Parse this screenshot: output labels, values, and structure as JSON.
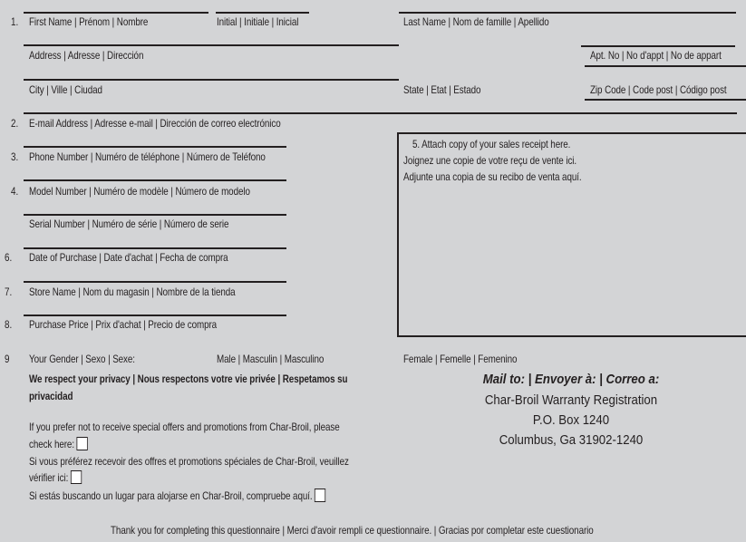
{
  "form": {
    "numbers": [
      "1.",
      "2.",
      "3.",
      "4.",
      "6.",
      "7.",
      "8.",
      "9"
    ],
    "first_name": "First Name | Prénom | Nombre",
    "initial": "Initial | Initiale | Inicial",
    "last_name": "Last Name | Nom de famille | Apellido",
    "address": "Address | Adresse | Dirección",
    "apt": "Apt. No | No d'appt | No de appart",
    "city": "City | Ville | Ciudad",
    "state": "State | Etat | Estado",
    "zip": "Zip Code | Code post | Código post",
    "email": "E-mail Address | Adresse e-mail | Dirección de correo electrónico",
    "phone": "Phone Number | Numéro de téléphone | Número de Teléfono",
    "model": "Model Number | Numéro de modèle | Número de modelo",
    "serial": "Serial Number | Numéro de série | Número de serie",
    "date": "Date of Purchase | Date d'achat | Fecha de compra",
    "store": "Store Name | Nom du magasin | Nombre de la tienda",
    "price": "Purchase Price | Prix d'achat | Precio de compra",
    "gender": "Your Gender | Sexo | Sexe:",
    "male": "Male | Masculin | Masculino",
    "female": "Female | Femelle | Femenino"
  },
  "receipt": {
    "line1": "5.  Attach copy of your sales receipt here.",
    "line2": "Joignez une copie de votre reçu de vente ici.",
    "line3": "Adjunte una copia de su recibo de venta aquí."
  },
  "privacy": {
    "heading1": "We respect your privacy | Nous respectons votre vie privée | Respetamos su",
    "heading2": "privacidad",
    "en1": "If you prefer not to receive special offers and promotions from Char-Broil, please",
    "en2": "check here:",
    "fr1": "Si vous préférez recevoir des offres et promotions spéciales de Char-Broil, veuillez",
    "fr2": "vérifier ici:",
    "es": "Si estás buscando un lugar para alojarse en Char-Broil, compruebe aquí."
  },
  "mail": {
    "heading": "Mail to: | Envoyer à: | Correo a:",
    "line1": "Char-Broil Warranty Registration",
    "line2": "P.O. Box 1240",
    "line3": "Columbus, Ga 31902-1240"
  },
  "footer": "Thank you for completing this questionnaire | Merci d'avoir rempli ce questionnaire. | Gracias por completar este cuestionario"
}
